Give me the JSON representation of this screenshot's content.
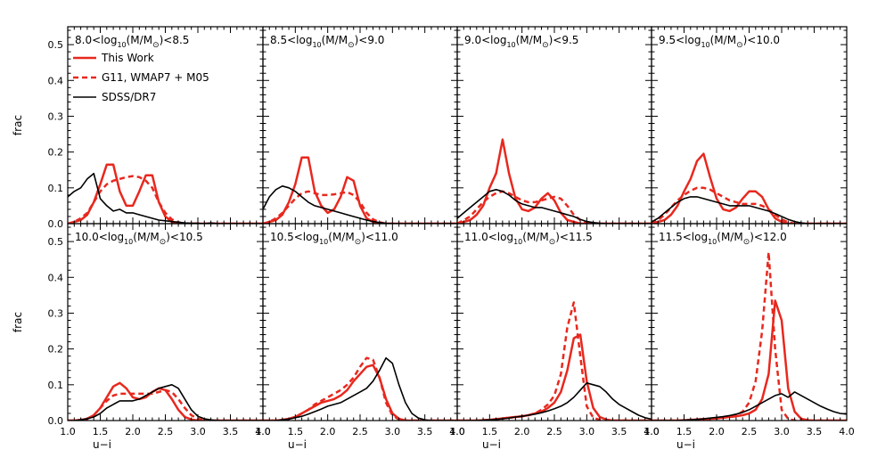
{
  "chart_data": {
    "type": "line",
    "xlabel": "u−i",
    "ylabel": "frac",
    "xlim": [
      1.0,
      4.0
    ],
    "ylim": [
      0.0,
      0.55
    ],
    "xticks": [
      "1.0",
      "1.5",
      "2.0",
      "2.5",
      "3.0",
      "3.5",
      "4.0"
    ],
    "yticks": [
      "0.0",
      "0.1",
      "0.2",
      "0.3",
      "0.4",
      "0.5"
    ],
    "grid": false,
    "legend": {
      "placement": "top-left of first panel",
      "entries": [
        {
          "name": "This Work",
          "color": "#e8281e",
          "dash": "solid"
        },
        {
          "name": "G11, WMAP7 + M05",
          "color": "#e8281e",
          "dash": "dashed"
        },
        {
          "name": "SDSS/DR7",
          "color": "#000000",
          "dash": "solid"
        }
      ]
    },
    "colors": {
      "this_work": "#e8281e",
      "g11": "#e8281e",
      "sdss": "#000000"
    },
    "x": [
      1.0,
      1.1,
      1.2,
      1.3,
      1.4,
      1.5,
      1.6,
      1.7,
      1.8,
      1.9,
      2.0,
      2.1,
      2.2,
      2.3,
      2.4,
      2.5,
      2.6,
      2.7,
      2.8,
      2.9,
      3.0,
      3.1,
      3.2,
      3.3,
      3.4,
      3.5,
      3.6,
      3.7,
      3.8,
      3.9,
      4.0
    ],
    "panels": [
      {
        "title_pre": "8.0<log",
        "title_sub": "10",
        "title_mid": "(M/M",
        "title_post": ")<8.5",
        "series": [
          {
            "name": "This Work",
            "values": [
              0.0,
              0.005,
              0.01,
              0.025,
              0.06,
              0.11,
              0.165,
              0.165,
              0.09,
              0.05,
              0.05,
              0.09,
              0.135,
              0.135,
              0.06,
              0.02,
              0.005,
              0.0,
              0.0,
              0.0,
              0.0,
              0.0,
              0.0,
              0.0,
              0.0,
              0.0,
              0.0,
              0.0,
              0.0,
              0.0,
              0.0
            ]
          },
          {
            "name": "G11, WMAP7 + M05",
            "values": [
              0.0,
              0.005,
              0.015,
              0.03,
              0.06,
              0.09,
              0.11,
              0.12,
              0.125,
              0.13,
              0.133,
              0.13,
              0.12,
              0.1,
              0.06,
              0.03,
              0.012,
              0.004,
              0.0,
              0.0,
              0.0,
              0.0,
              0.0,
              0.0,
              0.0,
              0.0,
              0.0,
              0.0,
              0.0,
              0.0,
              0.0
            ]
          },
          {
            "name": "SDSS/DR7",
            "values": [
              0.075,
              0.09,
              0.1,
              0.125,
              0.14,
              0.07,
              0.05,
              0.035,
              0.04,
              0.03,
              0.03,
              0.025,
              0.02,
              0.015,
              0.01,
              0.008,
              0.006,
              0.004,
              0.002,
              0.001,
              0.001,
              0.0,
              0.002,
              0.0,
              0.0,
              0.0,
              0.0,
              0.0,
              0.0,
              0.0,
              0.0
            ]
          }
        ]
      },
      {
        "title_pre": "8.5<log",
        "title_sub": "10",
        "title_mid": "(M/M",
        "title_post": ")<9.0",
        "series": [
          {
            "name": "This Work",
            "values": [
              0.0,
              0.005,
              0.01,
              0.025,
              0.06,
              0.11,
              0.185,
              0.185,
              0.09,
              0.05,
              0.03,
              0.04,
              0.075,
              0.13,
              0.12,
              0.05,
              0.015,
              0.005,
              0.0,
              0.0,
              0.0,
              0.0,
              0.0,
              0.0,
              0.0,
              0.0,
              0.0,
              0.0,
              0.0,
              0.0,
              0.0
            ]
          },
          {
            "name": "G11, WMAP7 + M05",
            "values": [
              0.0,
              0.005,
              0.015,
              0.03,
              0.05,
              0.07,
              0.085,
              0.09,
              0.085,
              0.08,
              0.08,
              0.082,
              0.085,
              0.088,
              0.08,
              0.06,
              0.03,
              0.012,
              0.004,
              0.0,
              0.0,
              0.0,
              0.0,
              0.0,
              0.0,
              0.0,
              0.0,
              0.0,
              0.0,
              0.0,
              0.0
            ]
          },
          {
            "name": "SDSS/DR7",
            "values": [
              0.04,
              0.075,
              0.095,
              0.105,
              0.1,
              0.09,
              0.075,
              0.06,
              0.05,
              0.045,
              0.04,
              0.035,
              0.03,
              0.025,
              0.02,
              0.015,
              0.01,
              0.006,
              0.003,
              0.001,
              0.0,
              0.0,
              0.0,
              0.0,
              0.0,
              0.0,
              0.0,
              0.0,
              0.0,
              0.0,
              0.0
            ]
          }
        ]
      },
      {
        "title_pre": "9.0<log",
        "title_sub": "10",
        "title_mid": "(M/M",
        "title_post": ")<9.5",
        "series": [
          {
            "name": "This Work",
            "values": [
              0.0,
              0.005,
              0.01,
              0.025,
              0.05,
              0.1,
              0.14,
              0.235,
              0.14,
              0.07,
              0.04,
              0.035,
              0.045,
              0.07,
              0.085,
              0.065,
              0.03,
              0.01,
              0.005,
              0.0,
              0.0,
              0.0,
              0.0,
              0.0,
              0.0,
              0.0,
              0.0,
              0.0,
              0.0,
              0.0,
              0.0
            ]
          },
          {
            "name": "G11, WMAP7 + M05",
            "values": [
              0.0,
              0.01,
              0.02,
              0.04,
              0.06,
              0.075,
              0.085,
              0.09,
              0.085,
              0.075,
              0.065,
              0.06,
              0.06,
              0.065,
              0.07,
              0.075,
              0.07,
              0.05,
              0.025,
              0.01,
              0.003,
              0.0,
              0.0,
              0.0,
              0.0,
              0.0,
              0.0,
              0.0,
              0.0,
              0.0,
              0.0
            ]
          },
          {
            "name": "SDSS/DR7",
            "values": [
              0.015,
              0.03,
              0.045,
              0.06,
              0.075,
              0.09,
              0.095,
              0.09,
              0.08,
              0.065,
              0.055,
              0.05,
              0.045,
              0.045,
              0.04,
              0.035,
              0.03,
              0.025,
              0.02,
              0.012,
              0.006,
              0.003,
              0.001,
              0.0,
              0.0,
              0.0,
              0.0,
              0.0,
              0.0,
              0.0,
              0.0
            ]
          }
        ]
      },
      {
        "title_pre": "9.5<log",
        "title_sub": "10",
        "title_mid": "(M/M",
        "title_post": ")<10.0",
        "series": [
          {
            "name": "This Work",
            "values": [
              0.0,
              0.005,
              0.01,
              0.025,
              0.05,
              0.09,
              0.125,
              0.175,
              0.195,
              0.13,
              0.07,
              0.04,
              0.035,
              0.045,
              0.07,
              0.09,
              0.09,
              0.075,
              0.04,
              0.015,
              0.005,
              0.0,
              0.0,
              0.0,
              0.0,
              0.0,
              0.0,
              0.0,
              0.0,
              0.0,
              0.0
            ]
          },
          {
            "name": "G11, WMAP7 + M05",
            "values": [
              0.0,
              0.01,
              0.025,
              0.045,
              0.065,
              0.08,
              0.092,
              0.1,
              0.1,
              0.095,
              0.085,
              0.075,
              0.065,
              0.06,
              0.055,
              0.055,
              0.055,
              0.05,
              0.04,
              0.025,
              0.012,
              0.004,
              0.0,
              0.0,
              0.0,
              0.0,
              0.0,
              0.0,
              0.0,
              0.0,
              0.0
            ]
          },
          {
            "name": "SDSS/DR7",
            "values": [
              0.005,
              0.015,
              0.03,
              0.045,
              0.06,
              0.07,
              0.075,
              0.075,
              0.07,
              0.065,
              0.06,
              0.055,
              0.05,
              0.05,
              0.05,
              0.05,
              0.045,
              0.04,
              0.035,
              0.028,
              0.02,
              0.012,
              0.006,
              0.002,
              0.0,
              0.0,
              0.0,
              0.0,
              0.0,
              0.0,
              0.0
            ]
          }
        ]
      },
      {
        "title_pre": "10.0<log",
        "title_sub": "10",
        "title_mid": "(M/M",
        "title_post": ")<10.5",
        "series": [
          {
            "name": "This Work",
            "values": [
              0.0,
              0.0,
              0.002,
              0.005,
              0.015,
              0.035,
              0.065,
              0.095,
              0.105,
              0.09,
              0.065,
              0.06,
              0.065,
              0.08,
              0.09,
              0.085,
              0.06,
              0.03,
              0.01,
              0.003,
              0.0,
              0.0,
              0.0,
              0.0,
              0.0,
              0.0,
              0.0,
              0.0,
              0.0,
              0.0,
              0.0
            ]
          },
          {
            "name": "G11, WMAP7 + M05",
            "values": [
              0.0,
              0.0,
              0.002,
              0.005,
              0.015,
              0.035,
              0.055,
              0.07,
              0.075,
              0.075,
              0.075,
              0.075,
              0.075,
              0.075,
              0.08,
              0.085,
              0.08,
              0.06,
              0.035,
              0.015,
              0.005,
              0.001,
              0.0,
              0.0,
              0.0,
              0.0,
              0.0,
              0.0,
              0.0,
              0.0,
              0.0
            ]
          },
          {
            "name": "SDSS/DR7",
            "values": [
              0.0,
              0.0,
              0.002,
              0.005,
              0.01,
              0.02,
              0.035,
              0.045,
              0.055,
              0.055,
              0.055,
              0.06,
              0.07,
              0.08,
              0.09,
              0.095,
              0.1,
              0.09,
              0.06,
              0.03,
              0.012,
              0.005,
              0.002,
              0.0,
              0.0,
              0.0,
              0.0,
              0.0,
              0.0,
              0.0,
              0.0
            ]
          }
        ]
      },
      {
        "title_pre": "10.5<log",
        "title_sub": "10",
        "title_mid": "(M/M",
        "title_post": ")<11.0",
        "series": [
          {
            "name": "This Work",
            "values": [
              0.0,
              0.0,
              0.0,
              0.002,
              0.005,
              0.01,
              0.02,
              0.03,
              0.04,
              0.05,
              0.055,
              0.06,
              0.07,
              0.085,
              0.11,
              0.13,
              0.15,
              0.155,
              0.12,
              0.06,
              0.02,
              0.005,
              0.0,
              0.0,
              0.0,
              0.0,
              0.0,
              0.0,
              0.0,
              0.0,
              0.0
            ]
          },
          {
            "name": "G11, WMAP7 + M05",
            "values": [
              0.0,
              0.0,
              0.0,
              0.002,
              0.005,
              0.01,
              0.02,
              0.03,
              0.045,
              0.055,
              0.065,
              0.075,
              0.085,
              0.1,
              0.12,
              0.15,
              0.175,
              0.17,
              0.12,
              0.05,
              0.015,
              0.003,
              0.0,
              0.0,
              0.0,
              0.0,
              0.0,
              0.0,
              0.0,
              0.0,
              0.0
            ]
          },
          {
            "name": "SDSS/DR7",
            "values": [
              0.0,
              0.0,
              0.0,
              0.002,
              0.004,
              0.008,
              0.012,
              0.018,
              0.025,
              0.032,
              0.04,
              0.045,
              0.05,
              0.06,
              0.07,
              0.08,
              0.09,
              0.11,
              0.14,
              0.175,
              0.16,
              0.1,
              0.05,
              0.02,
              0.007,
              0.002,
              0.0,
              0.0,
              0.0,
              0.0,
              0.0
            ]
          }
        ]
      },
      {
        "title_pre": "11.0<log",
        "title_sub": "10",
        "title_mid": "(M/M",
        "title_post": ")<11.5",
        "series": [
          {
            "name": "This Work",
            "values": [
              0.0,
              0.0,
              0.0,
              0.0,
              0.001,
              0.002,
              0.004,
              0.006,
              0.008,
              0.01,
              0.012,
              0.015,
              0.02,
              0.025,
              0.035,
              0.05,
              0.08,
              0.14,
              0.23,
              0.24,
              0.11,
              0.035,
              0.01,
              0.003,
              0.0,
              0.0,
              0.0,
              0.0,
              0.0,
              0.0,
              0.0
            ]
          },
          {
            "name": "G11, WMAP7 + M05",
            "values": [
              0.0,
              0.0,
              0.0,
              0.0,
              0.001,
              0.002,
              0.004,
              0.006,
              0.008,
              0.01,
              0.012,
              0.015,
              0.02,
              0.03,
              0.045,
              0.07,
              0.13,
              0.26,
              0.33,
              0.18,
              0.04,
              0.008,
              0.002,
              0.0,
              0.0,
              0.0,
              0.0,
              0.0,
              0.0,
              0.0,
              0.0
            ]
          },
          {
            "name": "SDSS/DR7",
            "values": [
              0.0,
              0.0,
              0.0,
              0.0,
              0.001,
              0.002,
              0.003,
              0.005,
              0.007,
              0.01,
              0.012,
              0.015,
              0.018,
              0.022,
              0.027,
              0.033,
              0.04,
              0.05,
              0.065,
              0.085,
              0.105,
              0.1,
              0.095,
              0.08,
              0.06,
              0.045,
              0.035,
              0.025,
              0.015,
              0.008,
              0.004
            ]
          }
        ]
      },
      {
        "title_pre": "11.5<log",
        "title_sub": "10",
        "title_mid": "(M/M",
        "title_post": ")<12.0",
        "series": [
          {
            "name": "This Work",
            "values": [
              0.0,
              0.0,
              0.0,
              0.0,
              0.0,
              0.001,
              0.002,
              0.003,
              0.004,
              0.005,
              0.006,
              0.008,
              0.01,
              0.012,
              0.015,
              0.02,
              0.03,
              0.06,
              0.13,
              0.335,
              0.28,
              0.09,
              0.025,
              0.005,
              0.001,
              0.0,
              0.0,
              0.0,
              0.0,
              0.0,
              0.0
            ]
          },
          {
            "name": "G11, WMAP7 + M05",
            "values": [
              0.0,
              0.0,
              0.0,
              0.0,
              0.0,
              0.001,
              0.002,
              0.003,
              0.004,
              0.005,
              0.006,
              0.008,
              0.01,
              0.015,
              0.025,
              0.05,
              0.11,
              0.25,
              0.47,
              0.2,
              0.03,
              0.005,
              0.0,
              0.0,
              0.0,
              0.0,
              0.0,
              0.0,
              0.0,
              0.0,
              0.0
            ]
          },
          {
            "name": "SDSS/DR7",
            "values": [
              0.0,
              0.0,
              0.0,
              0.0,
              0.0,
              0.001,
              0.002,
              0.003,
              0.005,
              0.007,
              0.009,
              0.011,
              0.014,
              0.018,
              0.023,
              0.03,
              0.04,
              0.05,
              0.06,
              0.07,
              0.075,
              0.065,
              0.08,
              0.07,
              0.06,
              0.05,
              0.04,
              0.032,
              0.025,
              0.02,
              0.018
            ]
          }
        ]
      }
    ]
  }
}
